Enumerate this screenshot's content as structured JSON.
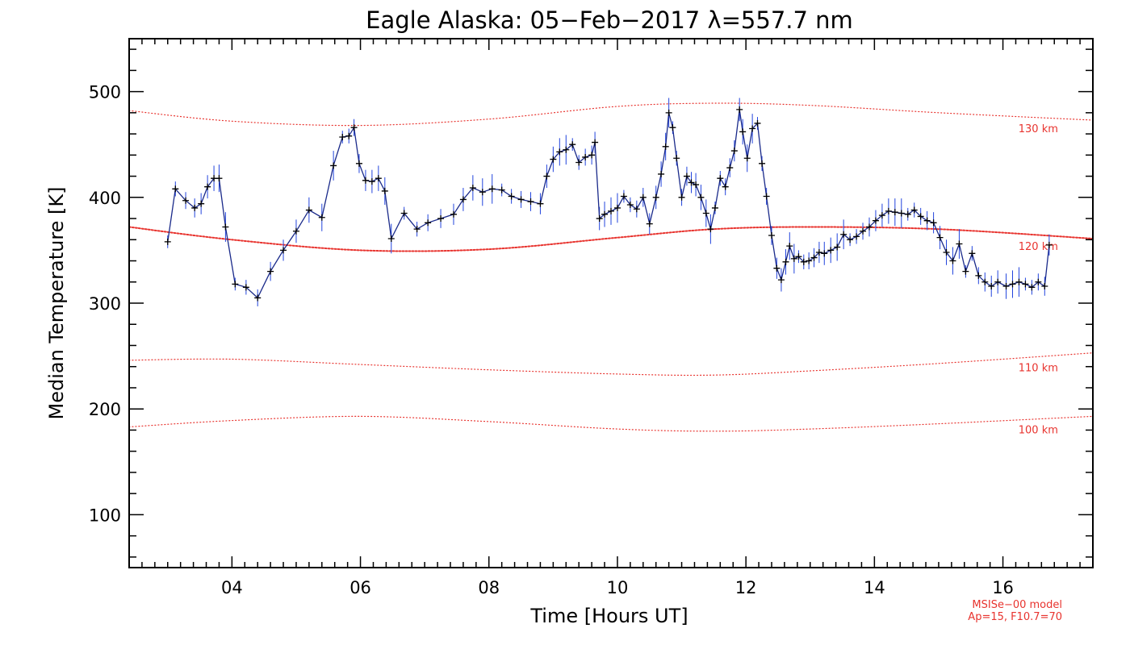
{
  "chart_data": {
    "type": "line",
    "title": "Eagle Alaska: 05−Feb−2017 λ=557.7 nm",
    "xlabel": "Time [Hours UT]",
    "ylabel": "Median Temperature [K]",
    "xlim": [
      2.4,
      17.4
    ],
    "ylim": [
      50,
      550
    ],
    "xticks": [
      4,
      6,
      8,
      10,
      12,
      14,
      16
    ],
    "xtick_labels": [
      "04",
      "06",
      "08",
      "10",
      "12",
      "14",
      "16"
    ],
    "yticks": [
      100,
      200,
      300,
      400,
      500
    ],
    "ytick_labels": [
      "100",
      "200",
      "300",
      "400",
      "500"
    ],
    "grid": false,
    "legend": "none",
    "colors": {
      "data_line": "#1a2a8a",
      "markers": "#000000",
      "error_bars": "#2244dd",
      "model_lines": "#e8332e"
    },
    "series": [
      {
        "x": [
          3.0,
          3.12,
          3.28,
          3.42,
          3.52,
          3.62,
          3.72,
          3.8,
          3.9,
          4.05,
          4.22,
          4.4,
          4.6,
          4.8,
          5.0,
          5.2,
          5.4,
          5.58,
          5.72,
          5.82,
          5.9,
          5.98,
          6.08,
          6.18,
          6.28,
          6.38,
          6.48,
          6.68,
          6.88,
          7.05,
          7.25,
          7.45,
          7.6,
          7.75,
          7.9,
          8.05,
          8.2,
          8.35,
          8.5,
          8.65,
          8.8,
          8.9,
          9.0,
          9.1,
          9.2,
          9.3,
          9.4,
          9.5,
          9.6,
          9.65,
          9.72,
          9.8,
          9.9,
          10.0,
          10.1,
          10.2,
          10.3,
          10.4,
          10.5,
          10.6,
          10.68,
          10.75,
          10.8,
          10.86,
          10.92,
          11.0,
          11.08,
          11.15,
          11.22,
          11.3,
          11.38,
          11.45,
          11.52,
          11.6,
          11.68,
          11.75,
          11.82,
          11.9,
          11.95,
          12.02,
          12.1,
          12.18,
          12.25,
          12.32,
          12.4,
          12.48,
          12.55,
          12.62,
          12.68,
          12.75,
          12.82,
          12.9,
          12.98,
          13.06,
          13.14,
          13.22,
          13.32,
          13.42,
          13.52,
          13.62,
          13.72,
          13.82,
          13.92,
          14.02,
          14.12,
          14.22,
          14.32,
          14.42,
          14.52,
          14.62,
          14.72,
          14.82,
          14.92,
          15.02,
          15.12,
          15.22,
          15.32,
          15.42,
          15.52,
          15.62,
          15.72,
          15.82,
          15.92,
          16.05,
          16.15,
          16.25,
          16.35,
          16.45,
          16.55,
          16.65,
          16.72
        ],
        "y": [
          358,
          408,
          397,
          390,
          394,
          410,
          418,
          418,
          372,
          318,
          315,
          305,
          330,
          350,
          368,
          388,
          381,
          430,
          457,
          458,
          466,
          432,
          416,
          415,
          418,
          406,
          361,
          385,
          370,
          376,
          380,
          384,
          398,
          409,
          405,
          408,
          407,
          401,
          398,
          396,
          394,
          420,
          436,
          443,
          445,
          450,
          433,
          438,
          440,
          452,
          380,
          384,
          387,
          390,
          401,
          393,
          389,
          400,
          375,
          400,
          422,
          448,
          480,
          466,
          437,
          400,
          420,
          414,
          412,
          400,
          385,
          370,
          390,
          418,
          410,
          428,
          444,
          483,
          462,
          437,
          465,
          470,
          432,
          401,
          364,
          333,
          322,
          339,
          354,
          342,
          344,
          339,
          340,
          343,
          348,
          347,
          350,
          353,
          365,
          360,
          363,
          368,
          372,
          378,
          383,
          387,
          386,
          385,
          384,
          388,
          382,
          378,
          376,
          362,
          348,
          340,
          356,
          330,
          347,
          326,
          320,
          316,
          320,
          316,
          318,
          320,
          318,
          315,
          320,
          316,
          355
        ]
      }
    ],
    "model": {
      "curve_label": "MSISe−00 model",
      "params_label": "Ap=15, F10.7=70",
      "curves": [
        {
          "label": "130 km",
          "x": [
            2.4,
            4.0,
            6.0,
            8.0,
            10.0,
            11.5,
            13.0,
            15.0,
            17.4
          ],
          "y": [
            482,
            472,
            468,
            474,
            486,
            489,
            487,
            480,
            473
          ]
        },
        {
          "label": "120 km",
          "x": [
            2.4,
            4.0,
            6.0,
            8.0,
            10.0,
            11.5,
            13.0,
            15.0,
            17.4
          ],
          "y": [
            372,
            360,
            350,
            351,
            362,
            370,
            372,
            370,
            361
          ]
        },
        {
          "label": "110 km",
          "x": [
            2.4,
            4.0,
            6.0,
            8.0,
            10.0,
            11.5,
            13.0,
            15.0,
            17.4
          ],
          "y": [
            246,
            247,
            242,
            237,
            233,
            232,
            236,
            243,
            253
          ]
        },
        {
          "label": "100 km",
          "x": [
            2.4,
            4.0,
            6.0,
            8.0,
            10.0,
            11.5,
            13.0,
            15.0,
            17.4
          ],
          "y": [
            183,
            189,
            193,
            188,
            181,
            179,
            181,
            186,
            193
          ]
        }
      ]
    }
  }
}
